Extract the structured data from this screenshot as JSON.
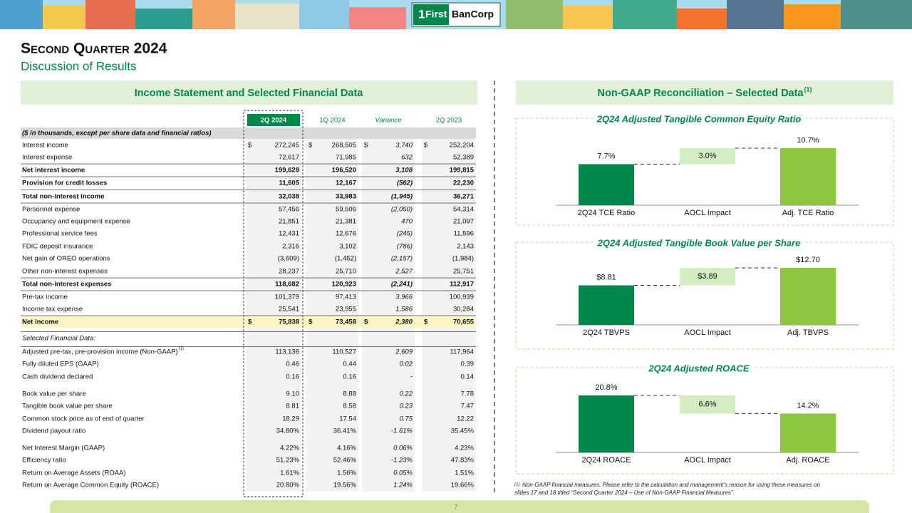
{
  "header": {
    "logo": [
      "1",
      "First",
      "BanCorp"
    ],
    "title": "Second Quarter 2024",
    "subtitle": "Discussion of Results"
  },
  "left_section": {
    "title": "Income Statement and Selected Financial Data",
    "columns": [
      "2Q 2024",
      "1Q 2024",
      "Variance",
      "2Q 2023"
    ],
    "rows": [
      {
        "label": "($ in thousands, except per share data and financial ratios)"
      },
      {
        "label": "Interest income",
        "currency": "$",
        "cells": [
          "272,245",
          "268,505",
          "3,740",
          "252,204"
        ]
      },
      {
        "label": "Interest expense",
        "cells": [
          "72,617",
          "71,985",
          "632",
          "52,389"
        ]
      },
      {
        "label": "Net interest income",
        "cells": [
          "199,628",
          "196,520",
          "3,108",
          "199,815"
        ]
      },
      {
        "label": "Provision for credit losses",
        "cells": [
          "11,605",
          "12,167",
          "(562)",
          "22,230"
        ]
      },
      {
        "label": "Total non-interest income",
        "cells": [
          "32,038",
          "33,983",
          "(1,945)",
          "36,271"
        ]
      },
      {
        "label": "Personnel expense",
        "cells": [
          "57,456",
          "59,506",
          "(2,050)",
          "54,314"
        ]
      },
      {
        "label": "Occupancy and equipment expense",
        "cells": [
          "21,851",
          "21,381",
          "470",
          "21,097"
        ]
      },
      {
        "label": "Professional service fees",
        "cells": [
          "12,431",
          "12,676",
          "(245)",
          "11,596"
        ]
      },
      {
        "label": "FDIC deposit insurance",
        "cells": [
          "2,316",
          "3,102",
          "(786)",
          "2,143"
        ]
      },
      {
        "label": "Net gain of OREO operations",
        "cells": [
          "(3,609)",
          "(1,452)",
          "(2,157)",
          "(1,984)"
        ]
      },
      {
        "label": "Other non-interest expenses",
        "cells": [
          "28,237",
          "25,710",
          "2,527",
          "25,751"
        ]
      },
      {
        "label": "Total non-interest expenses",
        "cells": [
          "118,682",
          "120,923",
          "(2,241)",
          "112,917"
        ]
      },
      {
        "label": "Pre-tax income",
        "cells": [
          "101,379",
          "97,413",
          "3,966",
          "100,939"
        ]
      },
      {
        "label": "Income tax expense",
        "cells": [
          "25,541",
          "23,955",
          "1,586",
          "30,284"
        ]
      },
      {
        "label": "Net income",
        "currency": "$",
        "cells": [
          "75,838",
          "73,458",
          "2,380",
          "70,655"
        ]
      },
      {
        "label": "Selected Financial Data:"
      },
      {
        "label": "Adjusted pre-tax, pre-provision income (Non-GAAP)",
        "note": "(1)",
        "cells": [
          "113,136",
          "110,527",
          "2,609",
          "117,964"
        ]
      },
      {
        "label": "Fully diluted EPS (GAAP)",
        "cells": [
          "0.46",
          "0.44",
          "0.02",
          "0.39"
        ]
      },
      {
        "label": "Cash dividend declared",
        "cells": [
          "0.16",
          "0.16",
          "-",
          "0.14"
        ]
      },
      {
        "label": "Book value per share",
        "cells": [
          "9.10",
          "8.88",
          "0.22",
          "7.78"
        ]
      },
      {
        "label": "Tangible book value per share",
        "cells": [
          "8.81",
          "8.58",
          "0.23",
          "7.47"
        ]
      },
      {
        "label": "Common stock price as of end of quarter",
        "cells": [
          "18.29",
          "17.54",
          "0.75",
          "12.22"
        ]
      },
      {
        "label": "Dividend payout ratio",
        "cells": [
          "34.80%",
          "36.41%",
          "-1.61%",
          "35.45%"
        ]
      },
      {
        "label": "Net Interest Margin (GAAP)",
        "cells": [
          "4.22%",
          "4.16%",
          "0.06%",
          "4.23%"
        ]
      },
      {
        "label": "Efficiency ratio",
        "cells": [
          "51.23%",
          "52.46%",
          "-1.23%",
          "47.83%"
        ]
      },
      {
        "label": "Return on Average Assets (ROAA)",
        "cells": [
          "1.61%",
          "1.56%",
          "0.05%",
          "1.51%"
        ]
      },
      {
        "label": "Return on Average Common Equity (ROACE)",
        "cells": [
          "20.80%",
          "19.56%",
          "1.24%",
          "19.66%"
        ]
      }
    ]
  },
  "right_section": {
    "title": "Non-GAAP Reconciliation – Selected Data",
    "title_note": "(1)",
    "charts": [
      {
        "type": "waterfall",
        "title": "2Q24 Adjusted Tangible Common Equity Ratio",
        "categories": [
          "2Q24 TCE Ratio",
          "AOCL Impact",
          "Adj. TCE Ratio"
        ],
        "values": [
          7.7,
          3.0,
          10.7
        ],
        "value_labels": [
          "7.7%",
          "3.0%",
          "10.7%"
        ],
        "colors": [
          "#00874a",
          "#d4ecc2",
          "#8dc63f"
        ]
      },
      {
        "type": "waterfall",
        "title": "2Q24 Adjusted Tangible Book Value per Share",
        "categories": [
          "2Q24 TBVPS",
          "AOCL Impact",
          "Adj. TBVPS"
        ],
        "values": [
          8.81,
          3.89,
          12.7
        ],
        "value_labels": [
          "$8.81",
          "$3.89",
          "$12.70"
        ],
        "colors": [
          "#00874a",
          "#d4ecc2",
          "#8dc63f"
        ]
      },
      {
        "type": "waterfall",
        "title": "2Q24 Adjusted ROACE",
        "categories": [
          "2Q24 ROACE",
          "AOCL Impact",
          "Adj. ROACE"
        ],
        "values": [
          20.8,
          6.6,
          14.2
        ],
        "value_labels": [
          "20.8%",
          "6.6%",
          "14.2%"
        ],
        "colors": [
          "#00874a",
          "#d4ecc2",
          "#8dc63f"
        ]
      }
    ],
    "footnote": {
      "marker": "(1)",
      "lines": [
        "Non-GAAP financial measures. Please refer to the calculation and management’s reason for using these measures on",
        "slides 17 and 18 titled “Second Quarter 2024 – Use of Non-GAAP Financial Measures”."
      ]
    }
  },
  "footer": {
    "page": "7"
  }
}
